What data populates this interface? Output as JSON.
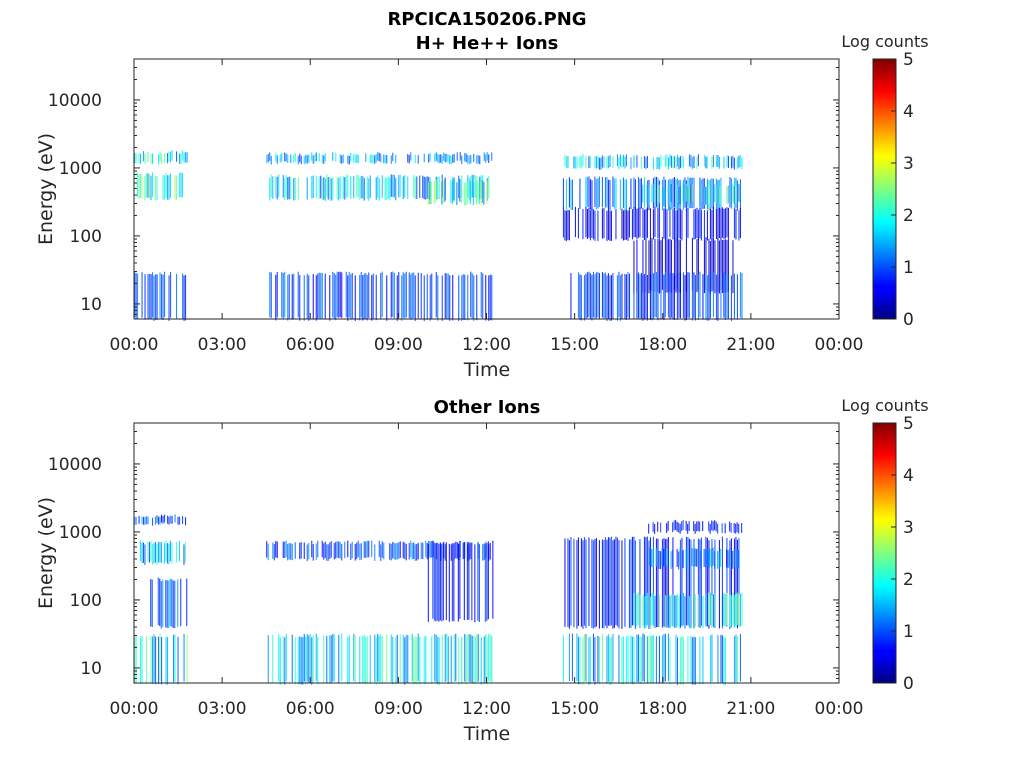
{
  "title_line1": "RPCICA150206.PNG",
  "colorbar": {
    "label": "Log counts",
    "ticks": [
      "0",
      "1",
      "2",
      "3",
      "4",
      "5"
    ],
    "colormap": "jet"
  },
  "chart_data": [
    {
      "type": "heatmap",
      "title": "H+ He++ Ions",
      "xlabel": "Time",
      "ylabel": "Energy (eV)",
      "yscale": "log",
      "ylim": [
        6,
        40000
      ],
      "xlim": [
        "00:00",
        "24:00"
      ],
      "xticks": [
        "00:00",
        "03:00",
        "06:00",
        "09:00",
        "12:00",
        "15:00",
        "18:00",
        "21:00",
        "00:00"
      ],
      "yticks": [
        "10",
        "100",
        "1000",
        "10000"
      ],
      "zlabel": "Log counts",
      "zlim": [
        0,
        5
      ],
      "data_gaps": [
        [
          "01:50",
          "04:30"
        ],
        [
          "12:15",
          "14:40"
        ],
        [
          "20:45",
          "24:00"
        ]
      ],
      "bands": [
        {
          "t0": 0.0,
          "t1": 1.8,
          "e0": 1200,
          "e1": 1700,
          "level": 1.8
        },
        {
          "t0": 0.1,
          "t1": 1.8,
          "e0": 350,
          "e1": 800,
          "level": 1.9
        },
        {
          "t0": 4.5,
          "t1": 12.2,
          "e0": 1200,
          "e1": 1600,
          "level": 1.4
        },
        {
          "t0": 4.5,
          "t1": 12.2,
          "e0": 350,
          "e1": 750,
          "level": 1.6
        },
        {
          "t0": 10.0,
          "t1": 12.0,
          "e0": 300,
          "e1": 650,
          "level": 2.0
        },
        {
          "t0": 14.6,
          "t1": 20.7,
          "e0": 1000,
          "e1": 1500,
          "level": 1.6
        },
        {
          "t0": 14.6,
          "t1": 20.7,
          "e0": 250,
          "e1": 700,
          "level": 1.2
        },
        {
          "t0": 17.3,
          "t1": 20.7,
          "e0": 300,
          "e1": 550,
          "level": 1.8
        },
        {
          "t0": 14.6,
          "t1": 20.7,
          "e0": 90,
          "e1": 250,
          "level": 0.6
        },
        {
          "t0": 17.0,
          "t1": 20.5,
          "e0": 15,
          "e1": 90,
          "level": 0.4
        },
        {
          "t0": 0.0,
          "t1": 1.8,
          "e0": 6,
          "e1": 28,
          "level": 0.9
        },
        {
          "t0": 4.5,
          "t1": 12.2,
          "e0": 6,
          "e1": 28,
          "level": 0.9
        },
        {
          "t0": 14.6,
          "t1": 20.7,
          "e0": 6,
          "e1": 28,
          "level": 0.9
        }
      ]
    },
    {
      "type": "heatmap",
      "title": "Other Ions",
      "xlabel": "Time",
      "ylabel": "Energy (eV)",
      "yscale": "log",
      "ylim": [
        6,
        40000
      ],
      "xlim": [
        "00:00",
        "24:00"
      ],
      "xticks": [
        "00:00",
        "03:00",
        "06:00",
        "09:00",
        "12:00",
        "15:00",
        "18:00",
        "21:00",
        "00:00"
      ],
      "yticks": [
        "10",
        "100",
        "1000",
        "10000"
      ],
      "zlabel": "Log counts",
      "zlim": [
        0,
        5
      ],
      "data_gaps": [
        [
          "01:50",
          "04:30"
        ],
        [
          "12:15",
          "14:40"
        ],
        [
          "20:45",
          "24:00"
        ]
      ],
      "bands": [
        {
          "t0": 0.0,
          "t1": 1.8,
          "e0": 1300,
          "e1": 1700,
          "level": 1.1
        },
        {
          "t0": 0.2,
          "t1": 1.8,
          "e0": 350,
          "e1": 700,
          "level": 1.6
        },
        {
          "t0": 0.5,
          "t1": 1.8,
          "e0": 40,
          "e1": 200,
          "level": 1.0
        },
        {
          "t0": 0.0,
          "t1": 1.8,
          "e0": 6,
          "e1": 30,
          "level": 1.8
        },
        {
          "t0": 4.5,
          "t1": 12.2,
          "e0": 6,
          "e1": 30,
          "level": 1.7
        },
        {
          "t0": 4.5,
          "t1": 12.2,
          "e0": 400,
          "e1": 700,
          "level": 1.0
        },
        {
          "t0": 10.0,
          "t1": 12.2,
          "e0": 50,
          "e1": 700,
          "level": 0.8
        },
        {
          "t0": 14.6,
          "t1": 20.7,
          "e0": 6,
          "e1": 30,
          "level": 1.7
        },
        {
          "t0": 14.6,
          "t1": 20.7,
          "e0": 40,
          "e1": 800,
          "level": 0.8
        },
        {
          "t0": 17.5,
          "t1": 20.7,
          "e0": 300,
          "e1": 550,
          "level": 1.2
        },
        {
          "t0": 17.0,
          "t1": 20.7,
          "e0": 40,
          "e1": 120,
          "level": 1.8
        },
        {
          "t0": 17.5,
          "t1": 20.7,
          "e0": 1000,
          "e1": 1400,
          "level": 0.7
        }
      ]
    }
  ]
}
